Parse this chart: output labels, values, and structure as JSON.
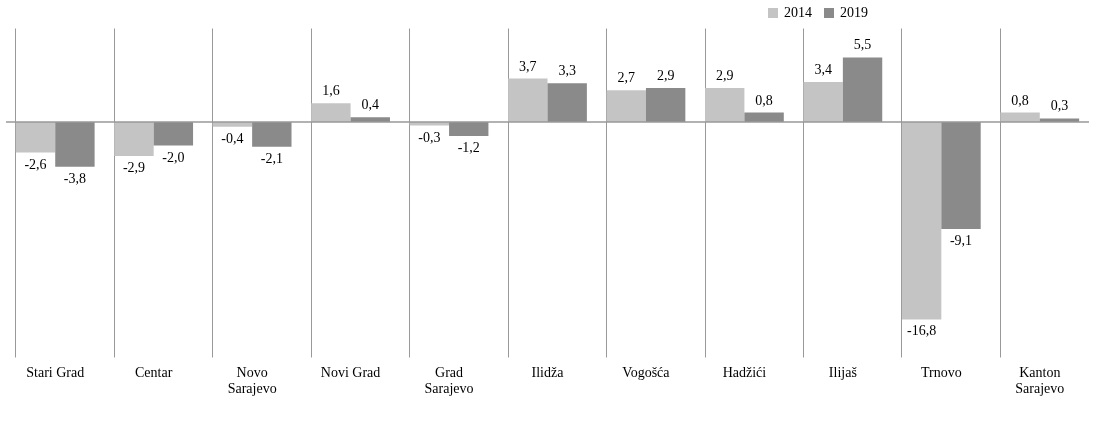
{
  "chart_data": {
    "type": "bar",
    "categories": [
      "Stari Grad",
      "Centar",
      "Novo Sarajevo",
      "Novi Grad",
      "Grad Sarajevo",
      "Ilidža",
      "Vogošća",
      "Hadžići",
      "Ilijaš",
      "Trnovo",
      "Kanton Sarajevo"
    ],
    "series": [
      {
        "name": "2014",
        "color": "#c4c4c4",
        "values": [
          -2.6,
          -2.9,
          -0.4,
          1.6,
          -0.3,
          3.7,
          2.7,
          2.9,
          3.4,
          -16.8,
          0.8
        ],
        "value_labels": [
          "-2,6",
          "-2,9",
          "-0,4",
          "1,6",
          "-0,3",
          "3,7",
          "2,7",
          "2,9",
          "3,4",
          "-16,8",
          "0,8"
        ]
      },
      {
        "name": "2019",
        "color": "#8a8a8a",
        "values": [
          -3.8,
          -2.0,
          -2.1,
          0.4,
          -1.2,
          3.3,
          2.9,
          0.8,
          5.5,
          -9.1,
          0.3
        ],
        "value_labels": [
          "-3,8",
          "-2,0",
          "-2,1",
          "0,4",
          "-1,2",
          "3,3",
          "2,9",
          "0,8",
          "5,5",
          "-9,1",
          "0,3"
        ]
      }
    ],
    "ref_lines": [
      {
        "axis": "y",
        "value": 0,
        "color": "#999999"
      }
    ],
    "grid": "x",
    "legend": "top right"
  }
}
